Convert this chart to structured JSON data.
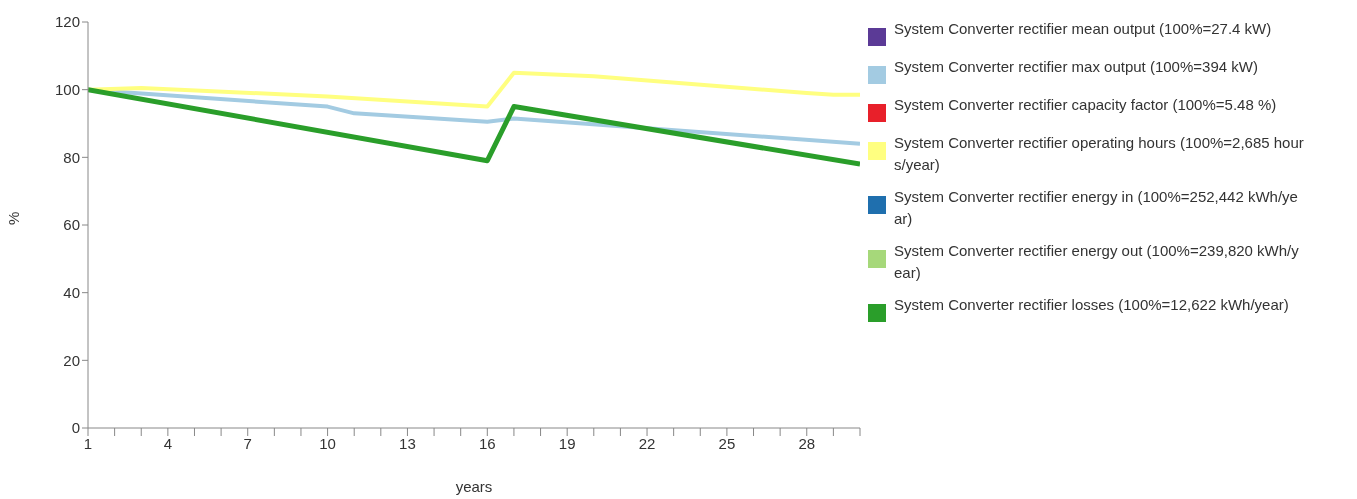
{
  "chart_data": {
    "type": "line",
    "xlabel": "years",
    "ylabel": "%",
    "xlim": [
      1,
      30
    ],
    "ylim": [
      0,
      120
    ],
    "yticks": [
      0,
      20,
      40,
      60,
      80,
      100,
      120
    ],
    "xticks": [
      1,
      {
        "value": 2,
        "label": null
      },
      {
        "value": 3,
        "label": null
      },
      4,
      {
        "value": 5,
        "label": null
      },
      {
        "value": 6,
        "label": null
      },
      7,
      {
        "value": 8,
        "label": null
      },
      {
        "value": 9,
        "label": null
      },
      10,
      {
        "value": 11,
        "label": null
      },
      {
        "value": 12,
        "label": null
      },
      13,
      {
        "value": 14,
        "label": null
      },
      {
        "value": 15,
        "label": null
      },
      16,
      {
        "value": 17,
        "label": null
      },
      {
        "value": 18,
        "label": null
      },
      19,
      {
        "value": 20,
        "label": null
      },
      {
        "value": 21,
        "label": null
      },
      22,
      {
        "value": 23,
        "label": null
      },
      {
        "value": 24,
        "label": null
      },
      25,
      {
        "value": 26,
        "label": null
      },
      {
        "value": 27,
        "label": null
      },
      28,
      {
        "value": 29,
        "label": null
      },
      {
        "value": 30,
        "label": null
      }
    ],
    "grid": false,
    "legend": "right",
    "marker": "none",
    "line_style": "solid",
    "series": [
      {
        "name": "System Converter rectifier mean output (100%=27.4 kW)",
        "color": "#5b3a96"
      },
      {
        "name": "System Converter rectifier max output (100%=394 kW)",
        "color": "#a3cbe2",
        "x": [
          1,
          10,
          11,
          16,
          17,
          30
        ],
        "values": [
          100,
          95,
          93,
          90.5,
          91.5,
          84
        ]
      },
      {
        "name": "System Converter rectifier capacity factor (100%=5.48 %)",
        "color": "#e8202a"
      },
      {
        "name": "System Converter rectifier operating hours (100%=2,685 hours/year)",
        "color": "#ffff80",
        "x": [
          1,
          3,
          10,
          16,
          17,
          20,
          28,
          29,
          30
        ],
        "values": [
          100,
          100.5,
          98,
          95,
          105,
          104,
          99,
          98.5,
          98.5
        ]
      },
      {
        "name": "System Converter rectifier energy in (100%=252,442 kWh/year)",
        "color": "#1f6fae"
      },
      {
        "name": "System Converter rectifier energy out (100%=239,820 kWh/year)",
        "color": "#a6d87a"
      },
      {
        "name": "System Converter rectifier losses (100%=12,622 kWh/year)",
        "color": "#2a9e2a",
        "x": [
          1,
          16,
          17,
          30
        ],
        "values": [
          100,
          79,
          95,
          78
        ]
      }
    ]
  }
}
